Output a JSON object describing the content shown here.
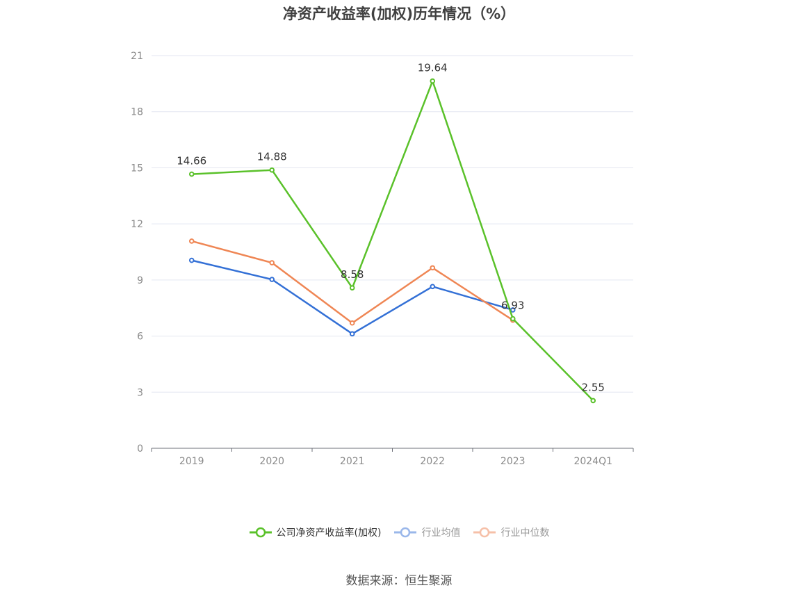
{
  "chart_data": {
    "type": "line",
    "title": "净资产收益率(加权)历年情况（%）",
    "categories": [
      "2019",
      "2020",
      "2021",
      "2022",
      "2023",
      "2024Q1"
    ],
    "ylim": [
      0,
      21
    ],
    "yticks": [
      0,
      3,
      6,
      9,
      12,
      15,
      18,
      21
    ],
    "grid": true,
    "legend_position": "bottom",
    "series": [
      {
        "name": "公司净资产收益率(加权)",
        "color": "#5ac12a",
        "values": [
          14.66,
          14.88,
          8.58,
          19.64,
          6.93,
          2.55
        ],
        "labels": [
          "14.66",
          "14.88",
          "8.58",
          "19.64",
          "6.93",
          "2.55"
        ]
      },
      {
        "name": "行业均值",
        "color": "#3370d6",
        "values": [
          10.05,
          9.03,
          6.12,
          8.65,
          7.4,
          null
        ]
      },
      {
        "name": "行业中位数",
        "color": "#ef8654",
        "values": [
          11.08,
          9.92,
          6.7,
          9.65,
          6.85,
          null
        ]
      }
    ]
  },
  "legend": {
    "items": [
      {
        "label": "公司净资产收益率(加权)",
        "color": "#5ac12a",
        "text_color": "#333333"
      },
      {
        "label": "行业均值",
        "color": "#9ab7ea",
        "text_color": "#999999"
      },
      {
        "label": "行业中位数",
        "color": "#f6c0a8",
        "text_color": "#999999"
      }
    ]
  },
  "source": "数据来源：恒生聚源"
}
